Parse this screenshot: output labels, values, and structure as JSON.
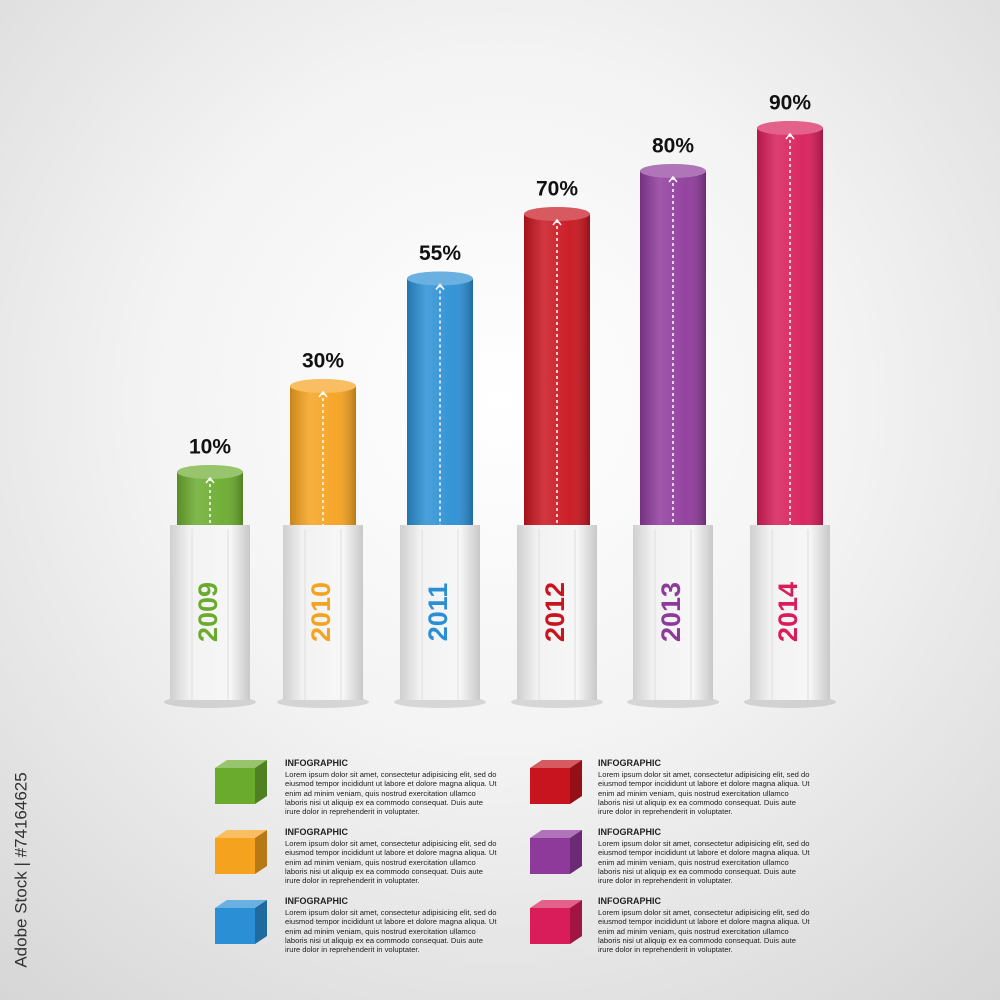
{
  "chart_data": {
    "type": "bar",
    "categories": [
      "2009",
      "2010",
      "2011",
      "2012",
      "2013",
      "2014"
    ],
    "values": [
      10,
      30,
      55,
      70,
      80,
      90
    ],
    "value_labels": [
      "10%",
      "30%",
      "55%",
      "70%",
      "80%",
      "90%"
    ],
    "colors": [
      "#6aab2e",
      "#f5a21e",
      "#2a8fd4",
      "#c8141e",
      "#8e3a9b",
      "#d81d5a"
    ],
    "ylim": [
      0,
      100
    ],
    "legend_items": [
      {
        "title": "INFOGRAPHIC",
        "text": "Lorem ipsum dolor sit amet, consectetur adipisicing elit, sed do eiusmod tempor incididunt ut labore et dolore magna aliqua. Ut enim ad minim veniam, quis nostrud exercitation ullamco laboris nisi ut aliquip ex ea commodo consequat. Duis aute irure dolor in reprehenderit in voluptater."
      },
      {
        "title": "INFOGRAPHIC",
        "text": "Lorem ipsum dolor sit amet, consectetur adipisicing elit, sed do eiusmod tempor incididunt ut labore et dolore magna aliqua. Ut enim ad minim veniam, quis nostrud exercitation ullamco laboris nisi ut aliquip ex ea commodo consequat. Duis aute irure dolor in reprehenderit in voluptater."
      },
      {
        "title": "INFOGRAPHIC",
        "text": "Lorem ipsum dolor sit amet, consectetur adipisicing elit, sed do eiusmod tempor incididunt ut labore et dolore magna aliqua. Ut enim ad minim veniam, quis nostrud exercitation ullamco laboris nisi ut aliquip ex ea commodo consequat. Duis aute irure dolor in reprehenderit in voluptater."
      },
      {
        "title": "INFOGRAPHIC",
        "text": "Lorem ipsum dolor sit amet, consectetur adipisicing elit, sed do eiusmod tempor incididunt ut labore et dolore magna aliqua. Ut enim ad minim veniam, quis nostrud exercitation ullamco laboris nisi ut aliquip ex ea commodo consequat. Duis aute irure dolor in reprehenderit in voluptater."
      },
      {
        "title": "INFOGRAPHIC",
        "text": "Lorem ipsum dolor sit amet, consectetur adipisicing elit, sed do eiusmod tempor incididunt ut labore et dolore magna aliqua. Ut enim ad minim veniam, quis nostrud exercitation ullamco laboris nisi ut aliquip ex ea commodo consequat. Duis aute irure dolor in reprehenderit in voluptater."
      },
      {
        "title": "INFOGRAPHIC",
        "text": "Lorem ipsum dolor sit amet, consectetur adipisicing elit, sed do eiusmod tempor incididunt ut labore et dolore magna aliqua. Ut enim ad minim veniam, quis nostrud exercitation ullamco laboris nisi ut aliquip ex ea commodo consequat. Duis aute irure dolor in reprehenderit in voluptater."
      }
    ]
  },
  "watermark": "Adobe Stock | #74164625"
}
